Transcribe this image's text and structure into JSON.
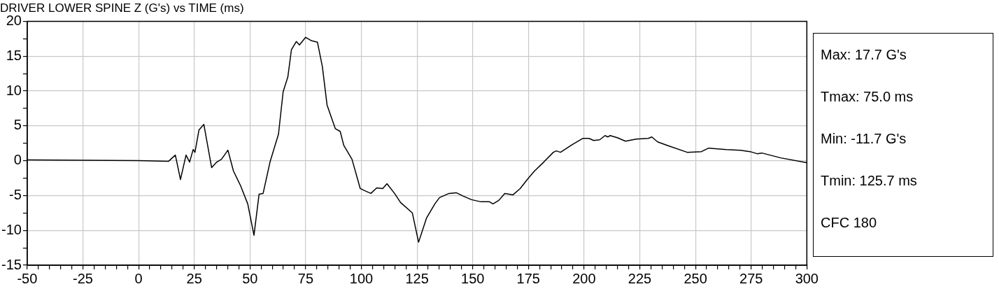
{
  "chart_data": {
    "type": "line",
    "title": "DRIVER LOWER SPINE Z (G's) vs TIME (ms)",
    "annotations": [
      "Max: 17.7 G's",
      "Tmax: 75.0 ms",
      "Min: -11.7 G's",
      "Tmin: 125.7 ms",
      "CFC 180"
    ],
    "series": [
      {
        "color": "#000000",
        "x": [
          -50,
          0,
          13.4,
          16.5,
          18.8,
          21.3,
          22.9,
          24.5,
          25.3,
          27.1,
          29.3,
          32.8,
          35.1,
          37.2,
          40.1,
          42.6,
          45.8,
          49.0,
          51.8,
          54.1,
          55.9,
          59.0,
          62.8,
          64.9,
          67.0,
          68.6,
          70.8,
          72.2,
          75.0,
          77.7,
          80.3,
          82.5,
          84.6,
          88.3,
          90.5,
          92.1,
          95.8,
          99.5,
          102.1,
          104.3,
          106.9,
          109.6,
          111.5,
          114.9,
          117.6,
          122.9,
          125.7,
          129.3,
          133.0,
          135.1,
          139.4,
          142.6,
          145.8,
          149.5,
          153.7,
          157.5,
          159.1,
          161.7,
          164.4,
          168.1,
          171.3,
          174.5,
          177.7,
          181.9,
          186.2,
          187.5,
          189.4,
          194.7,
          199.5,
          202.2,
          204.3,
          207.0,
          209.4,
          210.7,
          211.7,
          214.9,
          218.6,
          223.4,
          228.8,
          230.4,
          233.0,
          237.3,
          246.3,
          252.7,
          255.9,
          263.9,
          270.2,
          274.5,
          277.7,
          279.8,
          288.3,
          300
        ],
        "values": [
          0.1,
          0.0,
          -0.1,
          0.8,
          -2.7,
          0.8,
          -0.2,
          1.6,
          1.2,
          4.4,
          5.2,
          -1.0,
          -0.2,
          0.2,
          1.5,
          -1.5,
          -3.6,
          -6.2,
          -10.7,
          -4.8,
          -4.7,
          -0.2,
          3.8,
          9.9,
          12.0,
          15.9,
          17.1,
          16.6,
          17.7,
          17.2,
          17.0,
          13.5,
          8.0,
          4.6,
          4.2,
          2.2,
          0.2,
          -4.0,
          -4.4,
          -4.7,
          -3.9,
          -4.0,
          -3.3,
          -4.7,
          -6.0,
          -7.5,
          -11.7,
          -8.2,
          -6.2,
          -5.3,
          -4.7,
          -4.6,
          -5.1,
          -5.6,
          -5.9,
          -5.9,
          -6.2,
          -5.7,
          -4.7,
          -4.9,
          -4.0,
          -2.7,
          -1.5,
          -0.2,
          1.2,
          1.4,
          1.2,
          2.3,
          3.2,
          3.2,
          2.9,
          3.0,
          3.6,
          3.4,
          3.6,
          3.3,
          2.8,
          3.1,
          3.2,
          3.4,
          2.7,
          2.2,
          1.2,
          1.3,
          1.8,
          1.6,
          1.5,
          1.3,
          1.0,
          1.1,
          0.4,
          -0.3
        ]
      }
    ],
    "xlim": [
      -50,
      300
    ],
    "xticks": [
      -50,
      {
        "value": -45,
        "label": null
      },
      {
        "value": -40,
        "label": null
      },
      {
        "value": -35,
        "label": null
      },
      {
        "value": -30,
        "label": null
      },
      -25,
      {
        "value": -20,
        "label": null
      },
      {
        "value": -15,
        "label": null
      },
      {
        "value": -10,
        "label": null
      },
      {
        "value": -5,
        "label": null
      },
      0,
      {
        "value": 5,
        "label": null
      },
      {
        "value": 10,
        "label": null
      },
      {
        "value": 15,
        "label": null
      },
      {
        "value": 20,
        "label": null
      },
      25,
      {
        "value": 30,
        "label": null
      },
      {
        "value": 35,
        "label": null
      },
      {
        "value": 40,
        "label": null
      },
      {
        "value": 45,
        "label": null
      },
      50,
      {
        "value": 55,
        "label": null
      },
      {
        "value": 60,
        "label": null
      },
      {
        "value": 65,
        "label": null
      },
      {
        "value": 70,
        "label": null
      },
      75,
      {
        "value": 80,
        "label": null
      },
      {
        "value": 85,
        "label": null
      },
      {
        "value": 90,
        "label": null
      },
      {
        "value": 95,
        "label": null
      },
      100,
      {
        "value": 105,
        "label": null
      },
      {
        "value": 110,
        "label": null
      },
      {
        "value": 115,
        "label": null
      },
      {
        "value": 120,
        "label": null
      },
      125,
      {
        "value": 130,
        "label": null
      },
      {
        "value": 135,
        "label": null
      },
      {
        "value": 140,
        "label": null
      },
      {
        "value": 145,
        "label": null
      },
      150,
      {
        "value": 155,
        "label": null
      },
      {
        "value": 160,
        "label": null
      },
      {
        "value": 165,
        "label": null
      },
      {
        "value": 170,
        "label": null
      },
      175,
      {
        "value": 180,
        "label": null
      },
      {
        "value": 185,
        "label": null
      },
      {
        "value": 190,
        "label": null
      },
      {
        "value": 195,
        "label": null
      },
      200,
      {
        "value": 205,
        "label": null
      },
      {
        "value": 210,
        "label": null
      },
      {
        "value": 215,
        "label": null
      },
      {
        "value": 220,
        "label": null
      },
      225,
      {
        "value": 230,
        "label": null
      },
      {
        "value": 235,
        "label": null
      },
      {
        "value": 240,
        "label": null
      },
      {
        "value": 245,
        "label": null
      },
      250,
      {
        "value": 255,
        "label": null
      },
      {
        "value": 260,
        "label": null
      },
      {
        "value": 265,
        "label": null
      },
      {
        "value": 270,
        "label": null
      },
      275,
      {
        "value": 280,
        "label": null
      },
      {
        "value": 285,
        "label": null
      },
      {
        "value": 290,
        "label": null
      },
      {
        "value": 295,
        "label": null
      },
      300
    ],
    "ylim": [
      -15,
      20
    ],
    "yticks": [
      -15,
      {
        "value": -12.5,
        "label": null
      },
      -10,
      {
        "value": -7.5,
        "label": null
      },
      -5,
      {
        "value": -2.5,
        "label": null
      },
      0,
      {
        "value": 2.5,
        "label": null
      },
      5,
      {
        "value": 7.5,
        "label": null
      },
      10,
      {
        "value": 12.5,
        "label": null
      },
      15,
      {
        "value": 17.5,
        "label": null
      },
      20
    ],
    "grid": true,
    "legend": false,
    "marker": "none",
    "line_style": "solid"
  }
}
